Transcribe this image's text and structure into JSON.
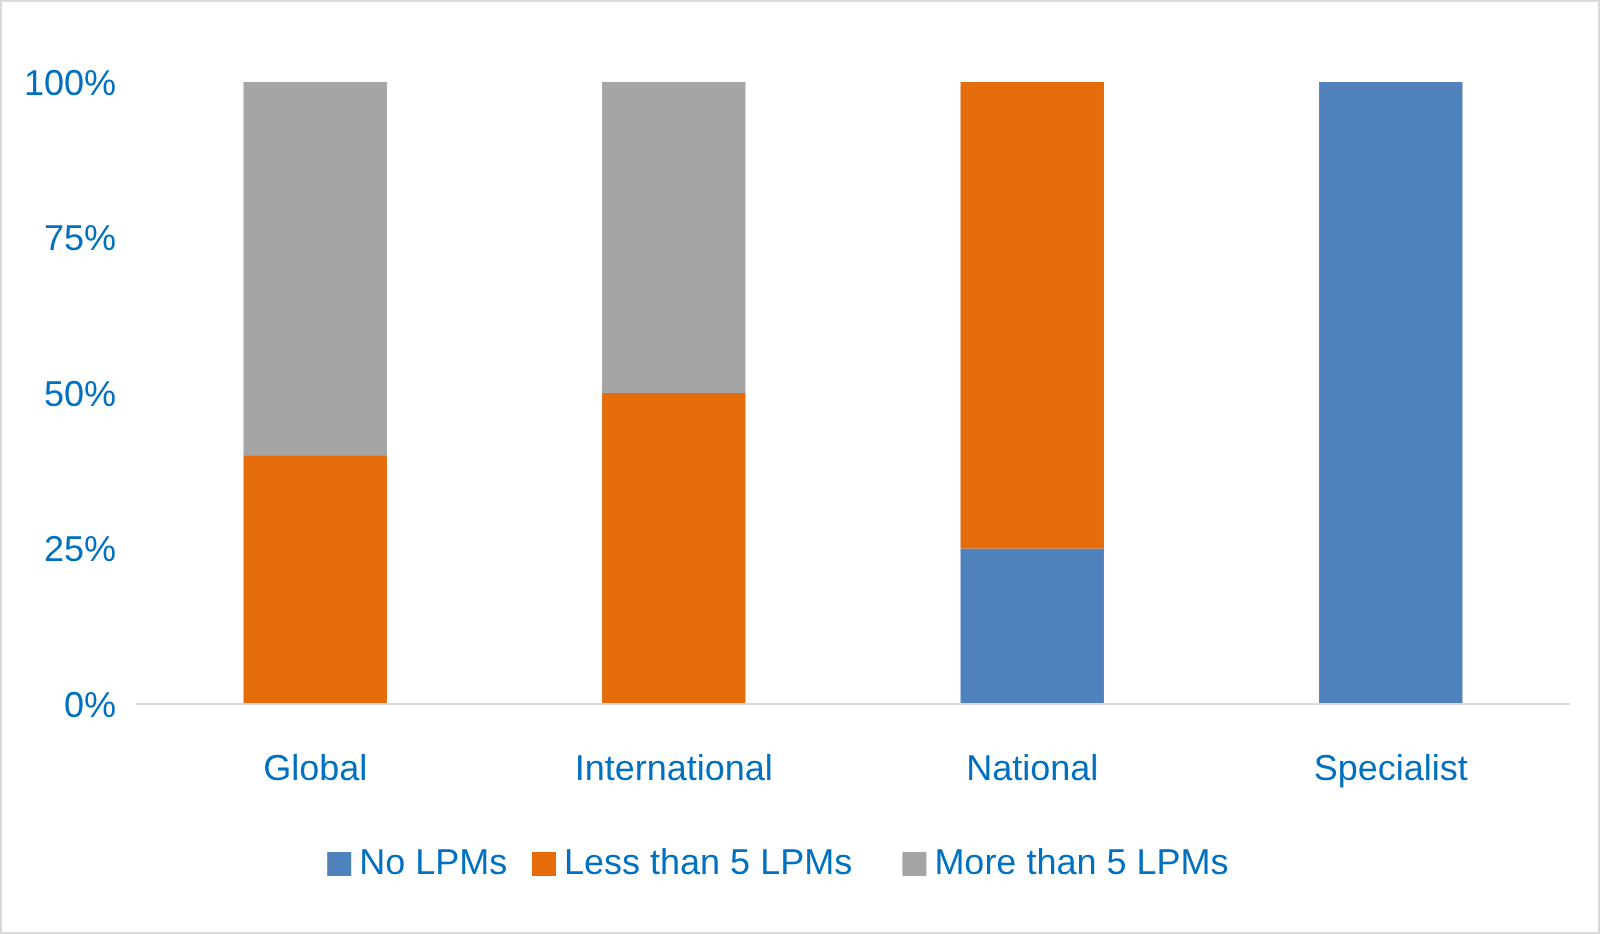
{
  "chart_data": {
    "type": "bar",
    "stacked": true,
    "categories": [
      "Global",
      "International",
      "National",
      "Specialist"
    ],
    "series": [
      {
        "name": "No LPMs",
        "color": "#4f81bd",
        "values": [
          0,
          0,
          25,
          100
        ]
      },
      {
        "name": "Less than 5 LPMs",
        "color": "#e46c0a",
        "values": [
          40,
          50,
          75,
          0
        ]
      },
      {
        "name": "More than 5 LPMs",
        "color": "#a5a5a5",
        "values": [
          60,
          50,
          0,
          0
        ]
      }
    ],
    "ylim": [
      0,
      100
    ],
    "yticks": [
      {
        "value": 0,
        "label": "0%"
      },
      {
        "value": 25,
        "label": "25%"
      },
      {
        "value": 50,
        "label": "50%"
      },
      {
        "value": 75,
        "label": "75%"
      },
      {
        "value": 100,
        "label": "100%"
      }
    ],
    "legend": "bottom"
  }
}
